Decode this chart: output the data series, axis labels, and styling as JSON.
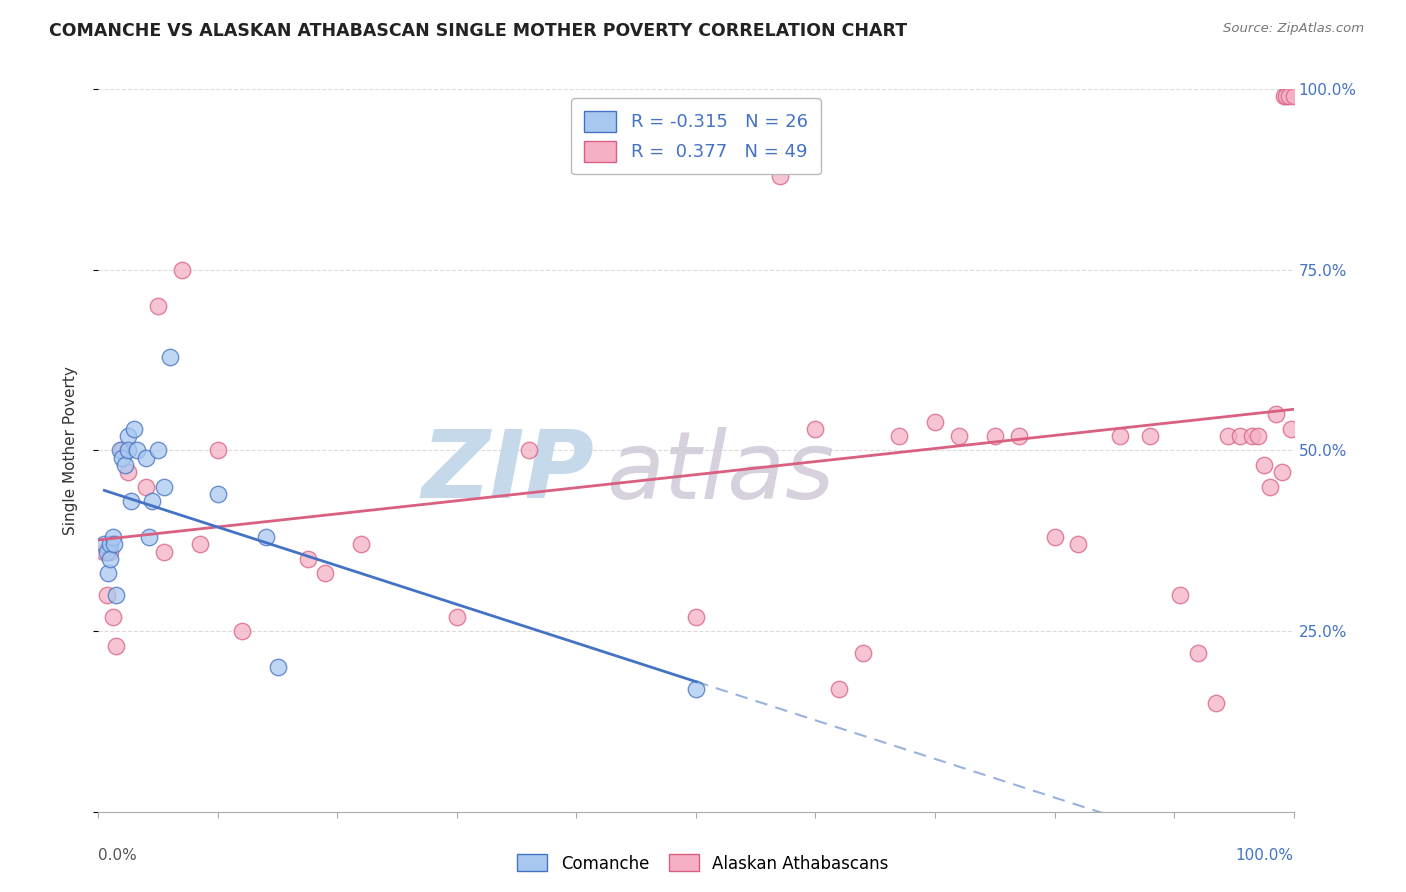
{
  "title": "COMANCHE VS ALASKAN ATHABASCAN SINGLE MOTHER POVERTY CORRELATION CHART",
  "source": "Source: ZipAtlas.com",
  "ylabel": "Single Mother Poverty",
  "comanche_label": "Comanche",
  "athabascan_label": "Alaskan Athabascans",
  "R_comanche": -0.315,
  "N_comanche": 26,
  "R_athabascan": 0.377,
  "N_athabascan": 49,
  "xlim": [
    0.0,
    1.0
  ],
  "ylim": [
    0.0,
    1.0
  ],
  "yticks": [
    0.0,
    0.25,
    0.5,
    0.75,
    1.0
  ],
  "ytick_labels": [
    "",
    "25.0%",
    "50.0%",
    "75.0%",
    "100.0%"
  ],
  "comanche_fill": "#a8c8ef",
  "comanche_edge": "#4472c4",
  "athabascan_fill": "#f5b0c5",
  "athabascan_edge": "#d96080",
  "trend_comanche": "#4472c4",
  "trend_athabascan": "#d96080",
  "background": "#ffffff",
  "grid_color": "#cccccc",
  "right_tick_color": "#4472c4",
  "bottom_label_color_left": "#555555",
  "bottom_label_color_right": "#4472c4",
  "comanche_x": [
    0.005,
    0.007,
    0.008,
    0.01,
    0.01,
    0.012,
    0.013,
    0.015,
    0.018,
    0.02,
    0.022,
    0.025,
    0.025,
    0.027,
    0.03,
    0.032,
    0.04,
    0.042,
    0.045,
    0.05,
    0.055,
    0.06,
    0.1,
    0.14,
    0.15,
    0.5
  ],
  "comanche_y": [
    0.37,
    0.36,
    0.33,
    0.37,
    0.35,
    0.38,
    0.37,
    0.3,
    0.5,
    0.49,
    0.48,
    0.52,
    0.5,
    0.43,
    0.53,
    0.5,
    0.49,
    0.38,
    0.43,
    0.5,
    0.45,
    0.63,
    0.44,
    0.38,
    0.2,
    0.17
  ],
  "athabascan_x": [
    0.005,
    0.007,
    0.01,
    0.012,
    0.015,
    0.02,
    0.025,
    0.04,
    0.05,
    0.055,
    0.07,
    0.085,
    0.1,
    0.12,
    0.175,
    0.19,
    0.22,
    0.3,
    0.36,
    0.5,
    0.57,
    0.6,
    0.62,
    0.64,
    0.67,
    0.7,
    0.72,
    0.75,
    0.77,
    0.8,
    0.82,
    0.855,
    0.88,
    0.905,
    0.92,
    0.935,
    0.945,
    0.955,
    0.965,
    0.97,
    0.975,
    0.98,
    0.985,
    0.99,
    0.992,
    0.994,
    0.996,
    0.998,
    1.0
  ],
  "athabascan_y": [
    0.36,
    0.3,
    0.36,
    0.27,
    0.23,
    0.5,
    0.47,
    0.45,
    0.7,
    0.36,
    0.75,
    0.37,
    0.5,
    0.25,
    0.35,
    0.33,
    0.37,
    0.27,
    0.5,
    0.27,
    0.88,
    0.53,
    0.17,
    0.22,
    0.52,
    0.54,
    0.52,
    0.52,
    0.52,
    0.38,
    0.37,
    0.52,
    0.52,
    0.3,
    0.22,
    0.15,
    0.52,
    0.52,
    0.52,
    0.52,
    0.48,
    0.45,
    0.55,
    0.47,
    0.99,
    0.99,
    0.99,
    0.53,
    0.99
  ],
  "legend_R1": "R = -0.315",
  "legend_N1": "N = 26",
  "legend_R2": "R =  0.377",
  "legend_N2": "N = 49"
}
